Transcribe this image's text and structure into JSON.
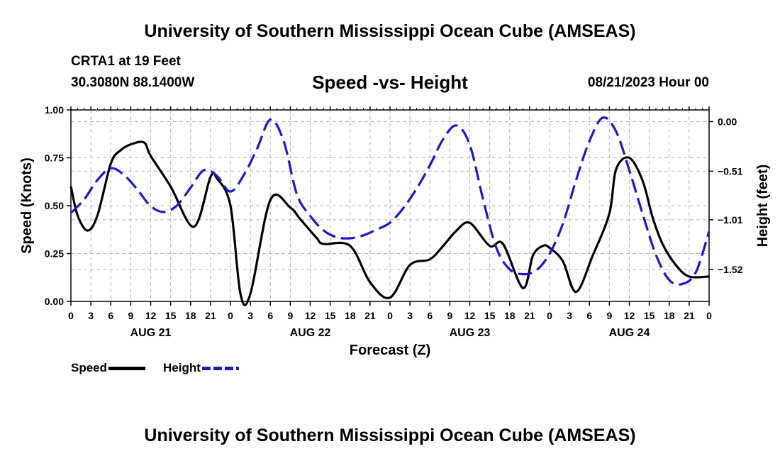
{
  "title": "University of Southern Mississippi Ocean Cube (AMSEAS)",
  "station": "CRTA1 at 19 Feet",
  "coordinates": "30.3080N  88.1400W",
  "subtitle": "Speed -vs- Height",
  "datetime": "08/21/2023 Hour 00",
  "chart_data": {
    "type": "line",
    "title": "Speed -vs- Height",
    "xlabel": "Forecast (Z)",
    "ylabel": "Speed (Knots)",
    "y2label": "Height (feet)",
    "x_range_hours": [
      0,
      96
    ],
    "ylim": [
      0,
      1
    ],
    "y2lim": [
      -1.85,
      0.12
    ],
    "grid": true,
    "x_tick_labels": [
      "0",
      "3",
      "6",
      "9",
      "12",
      "15",
      "18",
      "21",
      "0",
      "3",
      "6",
      "9",
      "12",
      "15",
      "18",
      "21",
      "0",
      "3",
      "6",
      "9",
      "12",
      "15",
      "18",
      "21",
      "0",
      "3",
      "6",
      "9",
      "12",
      "15",
      "18",
      "21",
      "0"
    ],
    "day_labels": [
      {
        "hour": 12,
        "label": "AUG 21"
      },
      {
        "hour": 36,
        "label": "AUG 22"
      },
      {
        "hour": 60,
        "label": "AUG 23"
      },
      {
        "hour": 84,
        "label": "AUG 24"
      }
    ],
    "y_ticks": [
      {
        "value": 0,
        "label": "0.00"
      },
      {
        "value": 0.25,
        "label": "0.25"
      },
      {
        "value": 0.5,
        "label": "0.50"
      },
      {
        "value": 0.75,
        "label": "0.75"
      },
      {
        "value": 1.0,
        "label": "1.00"
      }
    ],
    "y2_ticks": [
      {
        "value": 0.0,
        "label": "0.00"
      },
      {
        "value": -0.51,
        "label": "-0.51"
      },
      {
        "value": -1.01,
        "label": "-1.01"
      },
      {
        "value": -1.52,
        "label": "-1.52"
      }
    ],
    "series": [
      {
        "name": "Speed",
        "axis": "left",
        "color": "#000000",
        "style": "solid",
        "hours": [
          0,
          1,
          2.5,
          4,
          6,
          7.5,
          9,
          11,
          12,
          15,
          18.5,
          21,
          22,
          24,
          25.5,
          27,
          30,
          33,
          34.5,
          37,
          38,
          42,
          45,
          48,
          51,
          54,
          56,
          58,
          60,
          63,
          65,
          68,
          69.5,
          71,
          72,
          74,
          76,
          78.5,
          81,
          82,
          84,
          86,
          87.5,
          89,
          91,
          93,
          96
        ],
        "values": [
          0.6,
          0.45,
          0.37,
          0.45,
          0.72,
          0.79,
          0.82,
          0.83,
          0.76,
          0.6,
          0.39,
          0.65,
          0.64,
          0.5,
          0.04,
          0.04,
          0.53,
          0.49,
          0.43,
          0.33,
          0.3,
          0.29,
          0.1,
          0.02,
          0.19,
          0.22,
          0.29,
          0.37,
          0.41,
          0.29,
          0.3,
          0.07,
          0.24,
          0.29,
          0.28,
          0.21,
          0.05,
          0.24,
          0.46,
          0.69,
          0.75,
          0.63,
          0.44,
          0.3,
          0.19,
          0.13,
          0.13
        ]
      },
      {
        "name": "Height",
        "axis": "right",
        "color": "#1a1acc",
        "style": "dashed",
        "hours": [
          0,
          2,
          4,
          6,
          8,
          10,
          12,
          14,
          16,
          18,
          20,
          22,
          24,
          26,
          28,
          30,
          32,
          34,
          36,
          38,
          40,
          42,
          44,
          46,
          48,
          50,
          52,
          54,
          56,
          58,
          60,
          62,
          64,
          66,
          68,
          70,
          72,
          74,
          76,
          78,
          80,
          82,
          84,
          86,
          88,
          90,
          92,
          94,
          96
        ],
        "values": [
          -0.94,
          -0.8,
          -0.6,
          -0.48,
          -0.55,
          -0.7,
          -0.87,
          -0.93,
          -0.86,
          -0.68,
          -0.5,
          -0.56,
          -0.72,
          -0.55,
          -0.28,
          0.02,
          -0.2,
          -0.75,
          -0.97,
          -1.12,
          -1.19,
          -1.2,
          -1.17,
          -1.11,
          -1.04,
          -0.89,
          -0.69,
          -0.45,
          -0.18,
          -0.04,
          -0.24,
          -0.8,
          -1.3,
          -1.52,
          -1.57,
          -1.53,
          -1.36,
          -1.05,
          -0.6,
          -0.2,
          0.04,
          -0.1,
          -0.5,
          -0.95,
          -1.37,
          -1.63,
          -1.67,
          -1.55,
          -1.13
        ]
      }
    ]
  }
}
